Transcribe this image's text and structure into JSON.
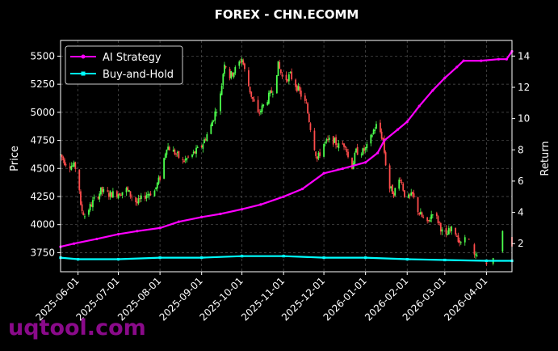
{
  "chart_data": {
    "type": "candlestick+line",
    "title": "FOREX - CHN.ECOMM",
    "ylabel_left": "Price",
    "ylabel_right": "Return",
    "ylim_left": [
      3580,
      5640
    ],
    "ylim_right": [
      0.2,
      15.0
    ],
    "left_ticks": [
      3750,
      4000,
      4250,
      4500,
      4750,
      5000,
      5250,
      5500
    ],
    "right_ticks": [
      2,
      4,
      6,
      8,
      10,
      12,
      14
    ],
    "x_start": "2025-05-19",
    "x_end": "2026-04-20",
    "x_ticks": [
      "2025-06-01",
      "2025-07-01",
      "2025-08-01",
      "2025-09-01",
      "2025-10-01",
      "2025-11-01",
      "2025-12-01",
      "2026-01-01",
      "2026-02-01",
      "2026-03-01",
      "2026-04-01"
    ],
    "grid": true,
    "legend_position": "top-left",
    "colors": {
      "up": "#4cff4c",
      "down": "#ff4c4c",
      "ai_strategy": "#ff00ff",
      "buy_hold": "#00ffff",
      "axes": "#ffffff",
      "grid": "#555555"
    },
    "price_path": [
      [
        "2025-05-19",
        4620
      ],
      [
        "2025-05-22",
        4560
      ],
      [
        "2025-05-26",
        4530
      ],
      [
        "2025-05-29",
        4520
      ],
      [
        "2025-06-01",
        4480
      ],
      [
        "2025-06-03",
        4150
      ],
      [
        "2025-06-06",
        4080
      ],
      [
        "2025-06-12",
        4200
      ],
      [
        "2025-06-18",
        4300
      ],
      [
        "2025-06-24",
        4270
      ],
      [
        "2025-07-01",
        4280
      ],
      [
        "2025-07-07",
        4310
      ],
      [
        "2025-07-15",
        4190
      ],
      [
        "2025-07-22",
        4270
      ],
      [
        "2025-07-28",
        4300
      ],
      [
        "2025-08-01",
        4420
      ],
      [
        "2025-08-06",
        4700
      ],
      [
        "2025-08-12",
        4640
      ],
      [
        "2025-08-18",
        4560
      ],
      [
        "2025-08-25",
        4620
      ],
      [
        "2025-09-01",
        4700
      ],
      [
        "2025-09-08",
        4880
      ],
      [
        "2025-09-15",
        5150
      ],
      [
        "2025-09-18",
        5450
      ],
      [
        "2025-09-22",
        5320
      ],
      [
        "2025-09-26",
        5380
      ],
      [
        "2025-10-01",
        5480
      ],
      [
        "2025-10-04",
        5320
      ],
      [
        "2025-10-08",
        5150
      ],
      [
        "2025-10-13",
        4980
      ],
      [
        "2025-10-18",
        5080
      ],
      [
        "2025-10-24",
        5200
      ],
      [
        "2025-10-28",
        5420
      ],
      [
        "2025-11-01",
        5280
      ],
      [
        "2025-11-06",
        5330
      ],
      [
        "2025-11-12",
        5200
      ],
      [
        "2025-11-18",
        5060
      ],
      [
        "2025-11-22",
        4800
      ],
      [
        "2025-11-26",
        4580
      ],
      [
        "2025-12-01",
        4720
      ],
      [
        "2025-12-07",
        4760
      ],
      [
        "2025-12-12",
        4700
      ],
      [
        "2025-12-17",
        4720
      ],
      [
        "2025-12-21",
        4480
      ],
      [
        "2025-12-25",
        4650
      ],
      [
        "2025-12-30",
        4650
      ],
      [
        "2026-01-03",
        4700
      ],
      [
        "2026-01-07",
        4840
      ],
      [
        "2026-01-10",
        4900
      ],
      [
        "2026-01-14",
        4750
      ],
      [
        "2026-01-18",
        4340
      ],
      [
        "2026-01-22",
        4280
      ],
      [
        "2026-01-27",
        4420
      ],
      [
        "2026-01-31",
        4220
      ],
      [
        "2026-02-05",
        4260
      ],
      [
        "2026-02-10",
        4100
      ],
      [
        "2026-02-16",
        4000
      ],
      [
        "2026-02-20",
        4120
      ],
      [
        "2026-02-25",
        4010
      ],
      [
        "2026-03-01",
        3860
      ],
      [
        "2026-03-04",
        3940
      ],
      [
        "2026-03-08",
        3960
      ],
      [
        "2026-03-13",
        3820
      ],
      [
        "2026-03-18",
        3880
      ],
      [
        "2026-03-23",
        3720
      ],
      [
        "2026-03-29",
        3680
      ],
      [
        "2026-04-03",
        3640
      ],
      [
        "2026-04-09",
        3720
      ],
      [
        "2026-04-14",
        3960
      ],
      [
        "2026-04-20",
        3800
      ]
    ],
    "series": [
      {
        "name": "AI Strategy",
        "points": [
          [
            "2025-05-19",
            1.8
          ],
          [
            "2025-05-29",
            2.0
          ],
          [
            "2025-06-15",
            2.3
          ],
          [
            "2025-07-01",
            2.6
          ],
          [
            "2025-07-15",
            2.8
          ],
          [
            "2025-08-01",
            3.0
          ],
          [
            "2025-08-15",
            3.4
          ],
          [
            "2025-09-01",
            3.7
          ],
          [
            "2025-09-15",
            3.9
          ],
          [
            "2025-10-01",
            4.2
          ],
          [
            "2025-10-15",
            4.5
          ],
          [
            "2025-11-01",
            5.0
          ],
          [
            "2025-11-15",
            5.5
          ],
          [
            "2025-12-01",
            6.5
          ],
          [
            "2025-12-15",
            6.8
          ],
          [
            "2026-01-01",
            7.2
          ],
          [
            "2026-01-10",
            7.8
          ],
          [
            "2026-01-15",
            8.6
          ],
          [
            "2026-01-25",
            9.3
          ],
          [
            "2026-02-01",
            9.8
          ],
          [
            "2026-02-10",
            10.8
          ],
          [
            "2026-02-20",
            11.8
          ],
          [
            "2026-03-01",
            12.6
          ],
          [
            "2026-03-10",
            13.3
          ],
          [
            "2026-03-15",
            13.7
          ],
          [
            "2026-03-28",
            13.7
          ],
          [
            "2026-04-10",
            13.8
          ],
          [
            "2026-04-16",
            13.8
          ],
          [
            "2026-04-20",
            14.3
          ]
        ]
      },
      {
        "name": "Buy-and-Hold",
        "points": [
          [
            "2025-05-19",
            1.1
          ],
          [
            "2025-06-01",
            1.0
          ],
          [
            "2025-07-01",
            1.0
          ],
          [
            "2025-08-01",
            1.1
          ],
          [
            "2025-09-01",
            1.1
          ],
          [
            "2025-10-01",
            1.2
          ],
          [
            "2025-11-01",
            1.2
          ],
          [
            "2025-12-01",
            1.1
          ],
          [
            "2026-01-01",
            1.1
          ],
          [
            "2026-02-01",
            1.0
          ],
          [
            "2026-03-01",
            0.95
          ],
          [
            "2026-04-01",
            0.9
          ],
          [
            "2026-04-20",
            0.9
          ]
        ]
      }
    ]
  },
  "watermark": "uqtool.com"
}
